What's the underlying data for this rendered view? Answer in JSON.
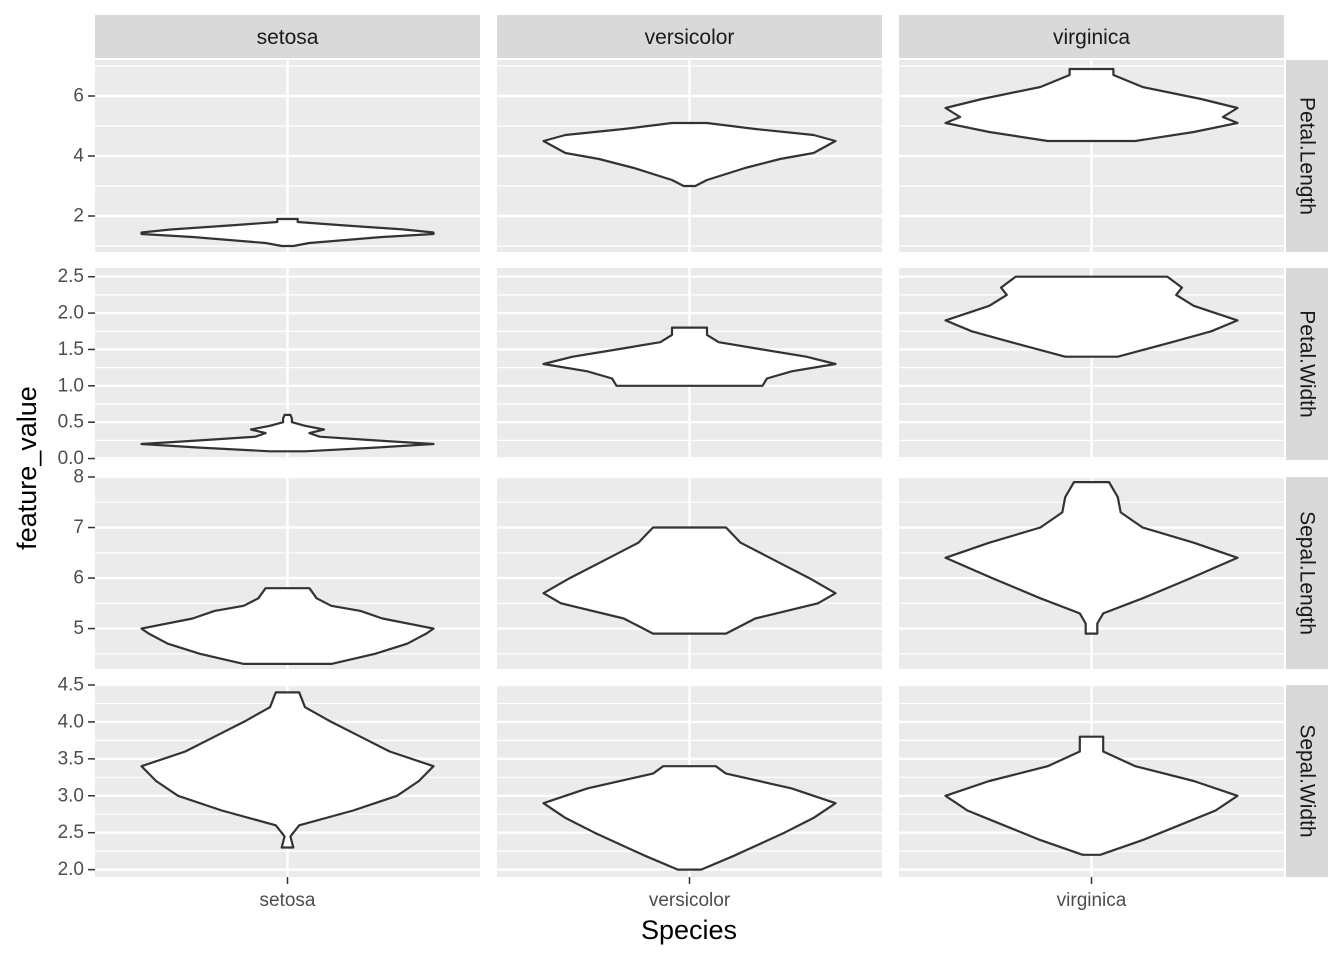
{
  "chart_data": {
    "type": "violin",
    "title": "",
    "xlabel": "Species",
    "ylabel": "feature_value",
    "facet_columns": [
      "setosa",
      "versicolor",
      "virginica"
    ],
    "facet_rows": [
      "Petal.Length",
      "Petal.Width",
      "Sepal.Length",
      "Sepal.Width"
    ],
    "x_tick_labels": [
      "setosa",
      "versicolor",
      "virginica"
    ],
    "rows": [
      {
        "name": "Petal.Length",
        "ylim": [
          0.8,
          7.2
        ],
        "yticks": [
          2,
          4,
          6
        ],
        "ytick_labels": [
          "2",
          "4",
          "6"
        ],
        "violins": [
          {
            "species": "setosa",
            "min": 1.0,
            "max": 1.9,
            "profile": [
              [
                1.0,
                0.04
              ],
              [
                1.1,
                0.15
              ],
              [
                1.3,
                0.65
              ],
              [
                1.4,
                1.0
              ],
              [
                1.45,
                1.0
              ],
              [
                1.55,
                0.8
              ],
              [
                1.7,
                0.35
              ],
              [
                1.8,
                0.07
              ],
              [
                1.9,
                0.07
              ]
            ]
          },
          {
            "species": "versicolor",
            "min": 3.0,
            "max": 5.1,
            "profile": [
              [
                3.0,
                0.04
              ],
              [
                3.2,
                0.12
              ],
              [
                3.6,
                0.38
              ],
              [
                3.9,
                0.62
              ],
              [
                4.1,
                0.85
              ],
              [
                4.5,
                1.0
              ],
              [
                4.7,
                0.85
              ],
              [
                4.9,
                0.45
              ],
              [
                5.1,
                0.12
              ]
            ]
          },
          {
            "species": "virginica",
            "min": 4.5,
            "max": 6.9,
            "profile": [
              [
                4.5,
                0.3
              ],
              [
                4.8,
                0.7
              ],
              [
                5.1,
                1.0
              ],
              [
                5.3,
                0.9
              ],
              [
                5.6,
                1.0
              ],
              [
                5.9,
                0.75
              ],
              [
                6.3,
                0.35
              ],
              [
                6.7,
                0.15
              ],
              [
                6.9,
                0.15
              ]
            ]
          }
        ]
      },
      {
        "name": "Petal.Width",
        "ylim": [
          -0.02,
          2.62
        ],
        "yticks": [
          0.0,
          0.5,
          1.0,
          1.5,
          2.0,
          2.5
        ],
        "ytick_labels": [
          "0.0",
          "0.5",
          "1.0",
          "1.5",
          "2.0",
          "2.5"
        ],
        "violins": [
          {
            "species": "setosa",
            "min": 0.1,
            "max": 0.6,
            "profile": [
              [
                0.1,
                0.12
              ],
              [
                0.15,
                0.6
              ],
              [
                0.2,
                1.0
              ],
              [
                0.25,
                0.6
              ],
              [
                0.3,
                0.22
              ],
              [
                0.35,
                0.15
              ],
              [
                0.4,
                0.25
              ],
              [
                0.45,
                0.12
              ],
              [
                0.5,
                0.03
              ],
              [
                0.55,
                0.03
              ],
              [
                0.6,
                0.02
              ]
            ]
          },
          {
            "species": "versicolor",
            "min": 1.0,
            "max": 1.8,
            "profile": [
              [
                1.0,
                0.5
              ],
              [
                1.1,
                0.53
              ],
              [
                1.2,
                0.7
              ],
              [
                1.3,
                1.0
              ],
              [
                1.4,
                0.8
              ],
              [
                1.5,
                0.5
              ],
              [
                1.6,
                0.2
              ],
              [
                1.7,
                0.12
              ],
              [
                1.8,
                0.12
              ]
            ]
          },
          {
            "species": "virginica",
            "min": 1.4,
            "max": 2.5,
            "profile": [
              [
                1.4,
                0.18
              ],
              [
                1.6,
                0.55
              ],
              [
                1.75,
                0.82
              ],
              [
                1.9,
                1.0
              ],
              [
                2.1,
                0.7
              ],
              [
                2.25,
                0.58
              ],
              [
                2.35,
                0.62
              ],
              [
                2.5,
                0.52
              ]
            ]
          }
        ]
      },
      {
        "name": "Sepal.Length",
        "ylim": [
          4.2,
          8.0
        ],
        "yticks": [
          5,
          6,
          7,
          8
        ],
        "ytick_labels": [
          "5",
          "6",
          "7",
          "8"
        ],
        "violins": [
          {
            "species": "setosa",
            "min": 4.3,
            "max": 5.8,
            "profile": [
              [
                4.3,
                0.3
              ],
              [
                4.5,
                0.6
              ],
              [
                4.7,
                0.82
              ],
              [
                4.9,
                0.95
              ],
              [
                5.0,
                1.0
              ],
              [
                5.2,
                0.65
              ],
              [
                5.35,
                0.5
              ],
              [
                5.45,
                0.3
              ],
              [
                5.6,
                0.2
              ],
              [
                5.8,
                0.15
              ]
            ]
          },
          {
            "species": "versicolor",
            "min": 4.9,
            "max": 7.0,
            "profile": [
              [
                4.9,
                0.25
              ],
              [
                5.2,
                0.45
              ],
              [
                5.5,
                0.88
              ],
              [
                5.7,
                1.0
              ],
              [
                6.0,
                0.82
              ],
              [
                6.4,
                0.55
              ],
              [
                6.7,
                0.35
              ],
              [
                7.0,
                0.25
              ]
            ]
          },
          {
            "species": "virginica",
            "min": 4.9,
            "max": 7.9,
            "profile": [
              [
                4.9,
                0.04
              ],
              [
                5.1,
                0.04
              ],
              [
                5.3,
                0.08
              ],
              [
                5.6,
                0.35
              ],
              [
                6.0,
                0.68
              ],
              [
                6.4,
                1.0
              ],
              [
                6.7,
                0.7
              ],
              [
                7.0,
                0.35
              ],
              [
                7.3,
                0.2
              ],
              [
                7.6,
                0.18
              ],
              [
                7.9,
                0.12
              ]
            ]
          }
        ]
      },
      {
        "name": "Sepal.Width",
        "ylim": [
          1.9,
          4.5
        ],
        "yticks": [
          2.0,
          2.5,
          3.0,
          3.5,
          4.0,
          4.5
        ],
        "ytick_labels": [
          "2.0",
          "2.5",
          "3.0",
          "3.5",
          "4.0",
          "4.5"
        ],
        "violins": [
          {
            "species": "setosa",
            "min": 2.3,
            "max": 4.4,
            "profile": [
              [
                2.3,
                0.04
              ],
              [
                2.45,
                0.02
              ],
              [
                2.6,
                0.08
              ],
              [
                2.8,
                0.45
              ],
              [
                3.0,
                0.75
              ],
              [
                3.2,
                0.9
              ],
              [
                3.4,
                1.0
              ],
              [
                3.6,
                0.7
              ],
              [
                3.8,
                0.5
              ],
              [
                4.0,
                0.3
              ],
              [
                4.2,
                0.12
              ],
              [
                4.4,
                0.08
              ]
            ]
          },
          {
            "species": "versicolor",
            "min": 2.0,
            "max": 3.4,
            "profile": [
              [
                2.0,
                0.08
              ],
              [
                2.2,
                0.32
              ],
              [
                2.5,
                0.65
              ],
              [
                2.7,
                0.85
              ],
              [
                2.9,
                1.0
              ],
              [
                3.1,
                0.7
              ],
              [
                3.3,
                0.25
              ],
              [
                3.4,
                0.18
              ]
            ]
          },
          {
            "species": "virginica",
            "min": 2.2,
            "max": 3.8,
            "profile": [
              [
                2.2,
                0.06
              ],
              [
                2.4,
                0.35
              ],
              [
                2.6,
                0.6
              ],
              [
                2.8,
                0.85
              ],
              [
                3.0,
                1.0
              ],
              [
                3.2,
                0.7
              ],
              [
                3.4,
                0.3
              ],
              [
                3.6,
                0.08
              ],
              [
                3.8,
                0.08
              ]
            ]
          }
        ]
      }
    ]
  }
}
